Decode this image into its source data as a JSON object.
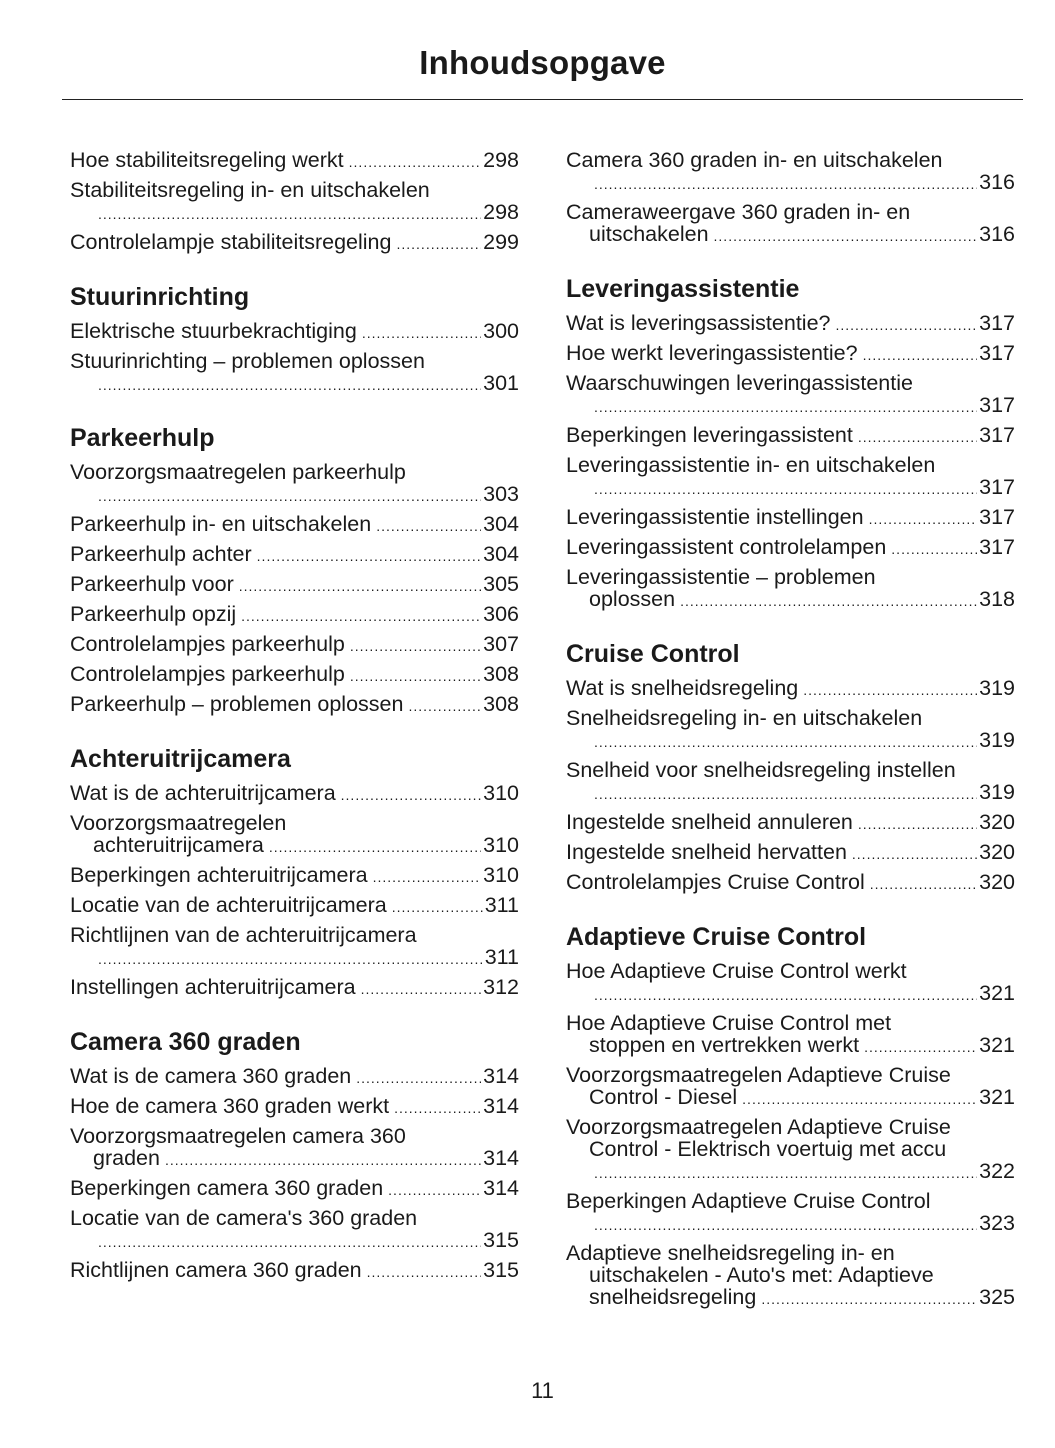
{
  "title": "Inhoudsopgave",
  "page_number": "11",
  "columns": [
    [
      {
        "heading": "",
        "entries": [
          {
            "lines": [],
            "tail": "Hoe stabiliteitsregeling werkt",
            "page": "298"
          },
          {
            "lines": [
              "Stabiliteitsregeling in- en uitschakelen"
            ],
            "tail": "",
            "page": "298"
          },
          {
            "lines": [],
            "tail": "Controlelampje stabiliteitsregeling",
            "page": "299"
          }
        ]
      },
      {
        "heading": "Stuurinrichting",
        "entries": [
          {
            "lines": [],
            "tail": "Elektrische stuurbekrachtiging",
            "page": "300"
          },
          {
            "lines": [
              "Stuurinrichting – problemen oplossen"
            ],
            "tail": "",
            "page": "301"
          }
        ]
      },
      {
        "heading": "Parkeerhulp",
        "entries": [
          {
            "lines": [
              "Voorzorgsmaatregelen parkeerhulp"
            ],
            "tail": "",
            "page": "303"
          },
          {
            "lines": [],
            "tail": "Parkeerhulp in- en uitschakelen",
            "page": "304"
          },
          {
            "lines": [],
            "tail": "Parkeerhulp achter",
            "page": "304"
          },
          {
            "lines": [],
            "tail": "Parkeerhulp voor",
            "page": "305"
          },
          {
            "lines": [],
            "tail": "Parkeerhulp opzij",
            "page": "306"
          },
          {
            "lines": [],
            "tail": "Controlelampjes parkeerhulp",
            "page": "307"
          },
          {
            "lines": [],
            "tail": "Controlelampjes parkeerhulp",
            "page": "308"
          },
          {
            "lines": [],
            "tail": "Parkeerhulp – problemen oplossen",
            "page": "308"
          }
        ]
      },
      {
        "heading": "Achteruitrijcamera",
        "entries": [
          {
            "lines": [],
            "tail": "Wat is de achteruitrijcamera",
            "page": "310"
          },
          {
            "lines": [
              "Voorzorgsmaatregelen"
            ],
            "tail": "achteruitrijcamera",
            "page": "310"
          },
          {
            "lines": [],
            "tail": "Beperkingen achteruitrijcamera",
            "page": "310"
          },
          {
            "lines": [],
            "tail": "Locatie van de achteruitrijcamera",
            "page": "311"
          },
          {
            "lines": [
              "Richtlijnen van de achteruitrijcamera"
            ],
            "tail": "",
            "page": "311"
          },
          {
            "lines": [],
            "tail": "Instellingen achteruitrijcamera",
            "page": "312"
          }
        ]
      },
      {
        "heading": "Camera 360 graden",
        "entries": [
          {
            "lines": [],
            "tail": "Wat is de camera 360 graden",
            "page": "314"
          },
          {
            "lines": [],
            "tail": "Hoe de camera 360 graden werkt",
            "page": "314"
          },
          {
            "lines": [
              "Voorzorgsmaatregelen camera 360"
            ],
            "tail": "graden",
            "page": "314"
          },
          {
            "lines": [],
            "tail": "Beperkingen camera 360 graden",
            "page": "314"
          },
          {
            "lines": [
              "Locatie van de camera's 360 graden"
            ],
            "tail": "",
            "page": "315"
          },
          {
            "lines": [],
            "tail": "Richtlijnen camera 360 graden",
            "page": "315"
          }
        ]
      }
    ],
    [
      {
        "heading": "",
        "entries": [
          {
            "lines": [
              "Camera 360 graden in- en uitschakelen"
            ],
            "tail": "",
            "page": "316"
          },
          {
            "lines": [
              "Cameraweergave 360 graden in- en"
            ],
            "tail": "uitschakelen",
            "page": "316"
          }
        ]
      },
      {
        "heading": "Leveringassistentie",
        "entries": [
          {
            "lines": [],
            "tail": "Wat is leveringsassistentie?",
            "page": "317"
          },
          {
            "lines": [],
            "tail": "Hoe werkt leveringassistentie?",
            "page": "317"
          },
          {
            "lines": [
              "Waarschuwingen leveringassistentie"
            ],
            "tail": "",
            "page": "317"
          },
          {
            "lines": [],
            "tail": "Beperkingen leveringassistent",
            "page": "317"
          },
          {
            "lines": [
              "Leveringassistentie in- en uitschakelen"
            ],
            "tail": "",
            "page": "317"
          },
          {
            "lines": [],
            "tail": "Leveringassistentie instellingen",
            "page": "317"
          },
          {
            "lines": [],
            "tail": "Leveringassistent controlelampen",
            "page": "317"
          },
          {
            "lines": [
              "Leveringassistentie – problemen"
            ],
            "tail": "oplossen",
            "page": "318"
          }
        ]
      },
      {
        "heading": "Cruise Control",
        "entries": [
          {
            "lines": [],
            "tail": "Wat is snelheidsregeling",
            "page": "319"
          },
          {
            "lines": [
              "Snelheidsregeling in- en uitschakelen"
            ],
            "tail": "",
            "page": "319"
          },
          {
            "lines": [
              "Snelheid voor snelheidsregeling instellen"
            ],
            "tail": "",
            "page": "319"
          },
          {
            "lines": [],
            "tail": "Ingestelde snelheid annuleren",
            "page": "320"
          },
          {
            "lines": [],
            "tail": "Ingestelde snelheid hervatten",
            "page": "320"
          },
          {
            "lines": [],
            "tail": "Controlelampjes Cruise Control",
            "page": "320"
          }
        ]
      },
      {
        "heading": "Adaptieve Cruise Control",
        "entries": [
          {
            "lines": [
              "Hoe Adaptieve Cruise Control werkt"
            ],
            "tail": "",
            "page": "321"
          },
          {
            "lines": [
              "Hoe Adaptieve Cruise Control met"
            ],
            "tail": "stoppen en vertrekken werkt",
            "page": "321"
          },
          {
            "lines": [
              "Voorzorgsmaatregelen Adaptieve Cruise"
            ],
            "tail": "Control - Diesel",
            "page": "321"
          },
          {
            "lines": [
              "Voorzorgsmaatregelen Adaptieve Cruise",
              "Control - Elektrisch voertuig met accu"
            ],
            "tail": "",
            "page": "322"
          },
          {
            "lines": [
              "Beperkingen Adaptieve Cruise Control"
            ],
            "tail": "",
            "page": "323"
          },
          {
            "lines": [
              "Adaptieve snelheidsregeling in- en",
              "uitschakelen - Auto's met: Adaptieve"
            ],
            "tail": "snelheidsregeling",
            "page": "325"
          }
        ]
      }
    ]
  ]
}
